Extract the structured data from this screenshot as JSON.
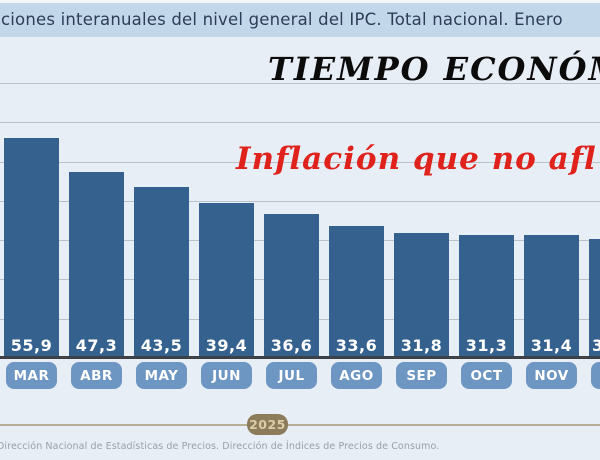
{
  "title_band": {
    "text": "ciones interanuales del nivel general del IPC. Total nacional. Enero"
  },
  "watermark": {
    "text": "TIEMPO ECONÓM"
  },
  "headline": {
    "text": "Inflación que no afl"
  },
  "footer": {
    "source": "Dirección Nacional de Estadísticas de Precios. Dirección de Índices de Precios de Consumo."
  },
  "colors": {
    "bar": "#35618e",
    "month_pill": "#6e96c3",
    "title_band_bg": "#c3d7ea",
    "headline_red": "#e0221d",
    "year_pill_bg": "#8d7c5b",
    "year_pill_text": "#dccda5",
    "background": "#e7eef6"
  },
  "chart_data": {
    "type": "bar",
    "title": "ciones interanuales del nivel general del IPC. Total nacional. Enero",
    "xlabel": "",
    "ylabel": "",
    "categories": [
      "MAR",
      "ABR",
      "MAY",
      "JUN",
      "JUL",
      "AGO",
      "SEP",
      "OCT",
      "NOV",
      ""
    ],
    "values": [
      55.9,
      47.3,
      43.5,
      39.4,
      36.6,
      33.6,
      31.8,
      31.3,
      31.4,
      30.3
    ],
    "value_labels": [
      "55,9",
      "47,3",
      "43,5",
      "39,4",
      "36,6",
      "33,6",
      "31,8",
      "31,3",
      "31,4",
      "3"
    ],
    "last_bar_partial": true,
    "year_axis_label": "2025",
    "ylim": [
      0,
      75
    ],
    "grid": true,
    "gridline_values": [
      10,
      20,
      30,
      40,
      50,
      60,
      70
    ],
    "legend_position": "none"
  }
}
